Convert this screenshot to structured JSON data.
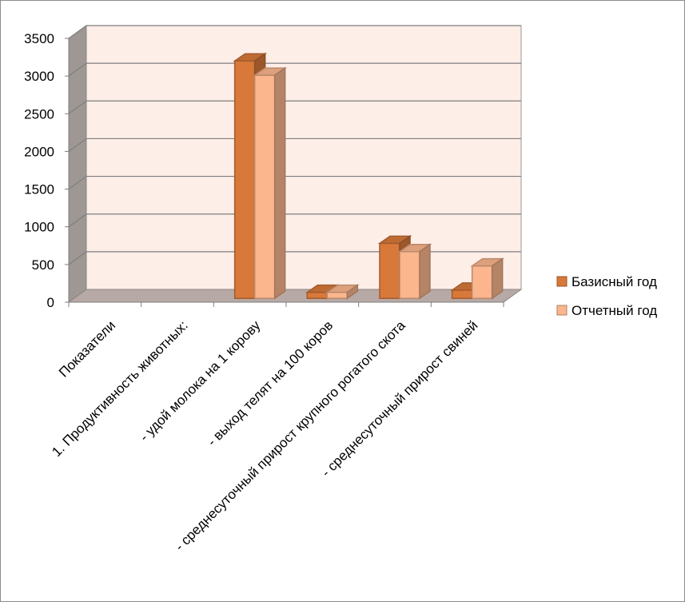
{
  "chart_data": {
    "type": "bar",
    "style": "3d-clustered-column",
    "categories": [
      "Показатели",
      "1. Продуктивность животных:",
      "- удой молока на 1 корову",
      "- выход телят на 100 коров",
      "- среднесуточный прирост крупного рогатого скота",
      "- среднесуточный прирост свиней"
    ],
    "series": [
      {
        "name": "Базисный год",
        "color": "#d8793a",
        "values": [
          0,
          0,
          3150,
          80,
          730,
          110
        ]
      },
      {
        "name": "Отчетный год",
        "color": "#fbb68d",
        "values": [
          0,
          0,
          2960,
          80,
          620,
          430
        ]
      }
    ],
    "ylim": [
      0,
      3500
    ],
    "yticks": [
      0,
      500,
      1000,
      1500,
      2000,
      2500,
      3000,
      3500
    ],
    "grid": true,
    "legend": "right",
    "wall_color": "#fdeee8",
    "floor_color": "#b7a9a5",
    "side_wall_color": "#9e9793"
  }
}
